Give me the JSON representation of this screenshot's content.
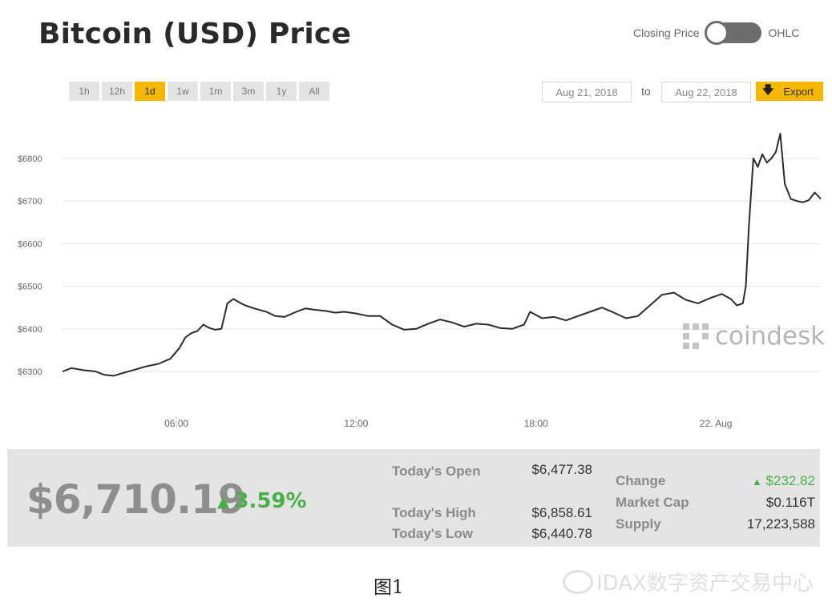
{
  "header": {
    "title": "Bitcoin (USD) Price",
    "toggle_left": "Closing Price",
    "toggle_right": "OHLC"
  },
  "range": {
    "buttons": [
      "1h",
      "12h",
      "1d",
      "1w",
      "1m",
      "3m",
      "1y",
      "All"
    ],
    "active": "1d"
  },
  "dates": {
    "from": "Aug 21, 2018",
    "to_label": "to",
    "to": "Aug 22, 2018",
    "export_label": "Export"
  },
  "watermark": {
    "brand": "coindesk"
  },
  "stats": {
    "price": "$6,710.19",
    "pct": "3.59%",
    "open_label": "Today's Open",
    "open": "$6,477.38",
    "high_label": "Today's High",
    "high": "$6,858.61",
    "low_label": "Today's Low",
    "low": "$6,440.78",
    "change_label": "Change",
    "change": "$232.82",
    "mcap_label": "Market Cap",
    "mcap": "$0.116T",
    "supply_label": "Supply",
    "supply": "17,223,588"
  },
  "footer": {
    "caption": "图1",
    "weibo": "IDAX数字资产交易中心"
  },
  "colors": {
    "accent": "#f5b800",
    "positive": "#49b048",
    "line": "#2b2b2b",
    "grid": "#e6e6e6"
  },
  "chart_data": {
    "type": "line",
    "title": "Bitcoin (USD) Price",
    "xlabel": "",
    "ylabel": "",
    "x_ticks": [
      {
        "at": 6,
        "label": "06:00"
      },
      {
        "at": 12,
        "label": "12:00"
      },
      {
        "at": 18,
        "label": "18:00"
      },
      {
        "at": 24,
        "label": "22. Aug"
      }
    ],
    "y_ticks": [
      {
        "value": 6300,
        "label": "$6300"
      },
      {
        "value": 6400,
        "label": "$6400"
      },
      {
        "value": 6500,
        "label": "$6500"
      },
      {
        "value": 6600,
        "label": "$6600"
      },
      {
        "value": 6700,
        "label": "$6700"
      },
      {
        "value": 6800,
        "label": "$6800"
      }
    ],
    "xlim": [
      2.2,
      27.5
    ],
    "ylim": [
      6270,
      6890
    ],
    "grid": true,
    "series": [
      {
        "name": "",
        "x": [
          2.2,
          2.5,
          2.9,
          3.3,
          3.6,
          3.9,
          4.3,
          4.6,
          5.0,
          5.4,
          5.8,
          6.1,
          6.3,
          6.5,
          6.7,
          6.9,
          7.1,
          7.3,
          7.5,
          7.7,
          7.9,
          8.1,
          8.3,
          8.6,
          9.0,
          9.3,
          9.6,
          10.0,
          10.3,
          10.6,
          11.0,
          11.3,
          11.6,
          12.0,
          12.4,
          12.8,
          13.2,
          13.6,
          14.0,
          14.4,
          14.8,
          15.2,
          15.6,
          16.0,
          16.4,
          16.8,
          17.2,
          17.6,
          17.8,
          18.2,
          18.6,
          19.0,
          19.4,
          19.8,
          20.2,
          20.6,
          21.0,
          21.4,
          21.8,
          22.2,
          22.6,
          23.0,
          23.4,
          23.8,
          24.2,
          24.5,
          24.7,
          24.9,
          25.0,
          25.1,
          25.25,
          25.4,
          25.55,
          25.7,
          25.85,
          26.0,
          26.15,
          26.3,
          26.5,
          26.7,
          26.9,
          27.1,
          27.3,
          27.5
        ],
        "y": [
          6300,
          6308,
          6303,
          6300,
          6292,
          6290,
          6298,
          6304,
          6312,
          6318,
          6330,
          6355,
          6380,
          6390,
          6395,
          6410,
          6402,
          6398,
          6400,
          6460,
          6470,
          6462,
          6455,
          6448,
          6440,
          6430,
          6428,
          6440,
          6448,
          6445,
          6442,
          6438,
          6440,
          6436,
          6430,
          6430,
          6410,
          6398,
          6400,
          6412,
          6422,
          6415,
          6405,
          6412,
          6410,
          6402,
          6400,
          6410,
          6440,
          6425,
          6428,
          6420,
          6430,
          6440,
          6450,
          6438,
          6425,
          6430,
          6455,
          6480,
          6485,
          6468,
          6460,
          6472,
          6482,
          6470,
          6455,
          6460,
          6500,
          6640,
          6800,
          6780,
          6810,
          6790,
          6800,
          6815,
          6858,
          6740,
          6705,
          6700,
          6697,
          6702,
          6720,
          6705
        ]
      }
    ]
  }
}
